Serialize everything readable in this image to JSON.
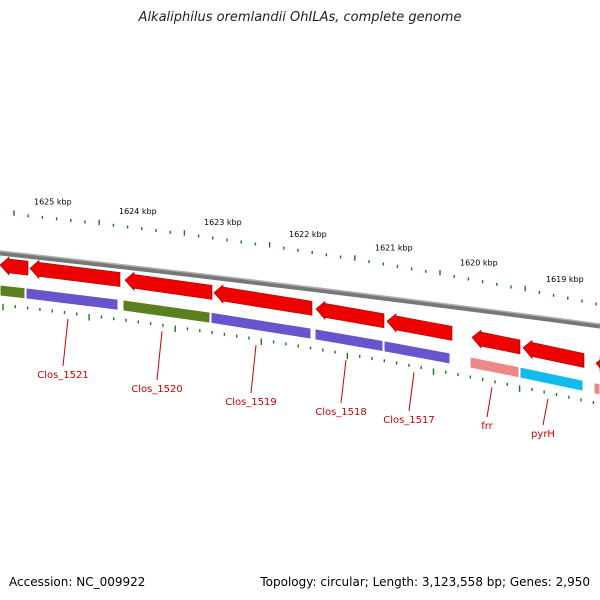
{
  "title": "Alkaliphilus oremlandii OhILAs, complete genome",
  "footer": {
    "accession": "Accession: NC_009922",
    "summary": "Topology: circular; Length: 3,123,558 bp; Genes: 2,950"
  },
  "colors": {
    "backbone": "#888888",
    "tick": "#1a7a1a",
    "label": "#cc0000",
    "red_arrow": "#ee0000",
    "purple_band": "#6655cc",
    "green_band": "#5a7f1c",
    "pink_band": "#ee8888",
    "cyan_band": "#11bbee"
  },
  "scale_labels": [
    "1625 kbp",
    "1624 kbp",
    "1623 kbp",
    "1622 kbp",
    "1621 kbp",
    "1620 kbp",
    "1619 kbp"
  ],
  "genes": [
    {
      "name": "Clos_1521",
      "band": "purple"
    },
    {
      "name": "Clos_1520",
      "band": "green"
    },
    {
      "name": "Clos_1519",
      "band": "purple"
    },
    {
      "name": "Clos_1518",
      "band": "purple"
    },
    {
      "name": "Clos_1517",
      "band": "purple"
    },
    {
      "name": "frr",
      "band": "pink"
    },
    {
      "name": "pyrH",
      "band": "cyan"
    }
  ]
}
